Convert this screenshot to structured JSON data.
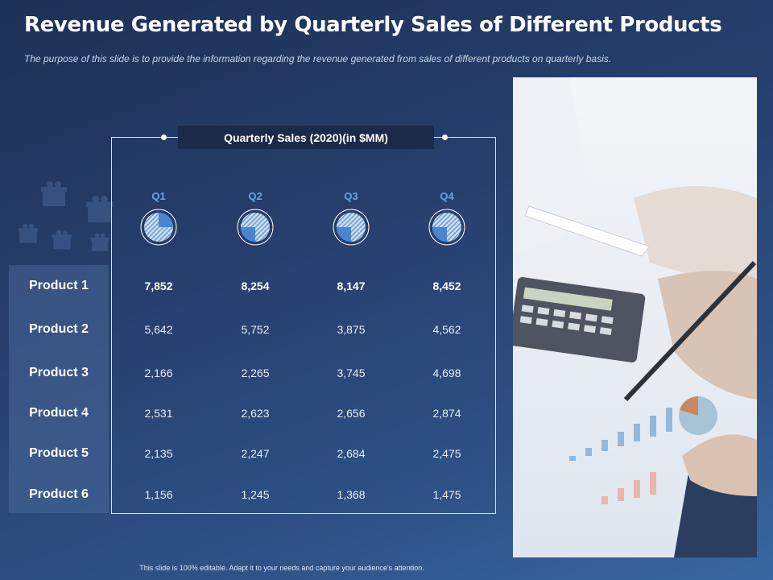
{
  "slide": {
    "title": "Revenue Generated by Quarterly Sales of Different Products",
    "subtitle": "The purpose of this slide is to provide the information regarding the revenue  generated from sales of different products on quarterly basis.",
    "footer": "This slide is 100% editable. Adapt it to your needs and capture your audience's attention."
  },
  "table": {
    "header": "Quarterly Sales (2020)(in $MM)",
    "quarters": [
      {
        "label": "Q1",
        "pie_fraction": 0.25
      },
      {
        "label": "Q2",
        "pie_fraction": 0.25
      },
      {
        "label": "Q3",
        "pie_fraction": 0.25
      },
      {
        "label": "Q4",
        "pie_fraction": 0.25
      }
    ],
    "rows": [
      {
        "label": "Product 1",
        "values": [
          "7,852",
          "8,254",
          "8,147",
          "8,452"
        ]
      },
      {
        "label": "Product 2",
        "values": [
          "5,642",
          "5,752",
          "3,875",
          "4,562"
        ]
      },
      {
        "label": "Product 3",
        "values": [
          "2,166",
          "2,265",
          "3,745",
          "4,698"
        ]
      },
      {
        "label": "Product 4",
        "values": [
          "2,531",
          "2,623",
          "2,656",
          "2,874"
        ]
      },
      {
        "label": "Product 5",
        "values": [
          "2,135",
          "2,247",
          "2,684",
          "2,475"
        ]
      },
      {
        "label": "Product 6",
        "values": [
          "1,156",
          "1,245",
          "1,368",
          "1,475"
        ]
      }
    ]
  },
  "colors": {
    "accent_blue": "#4a86d0",
    "header_bg": "#1b2a48",
    "quarter_label": "#6fa4e0"
  },
  "icons": [
    "gift-box-icon",
    "pie-chart-icon"
  ]
}
